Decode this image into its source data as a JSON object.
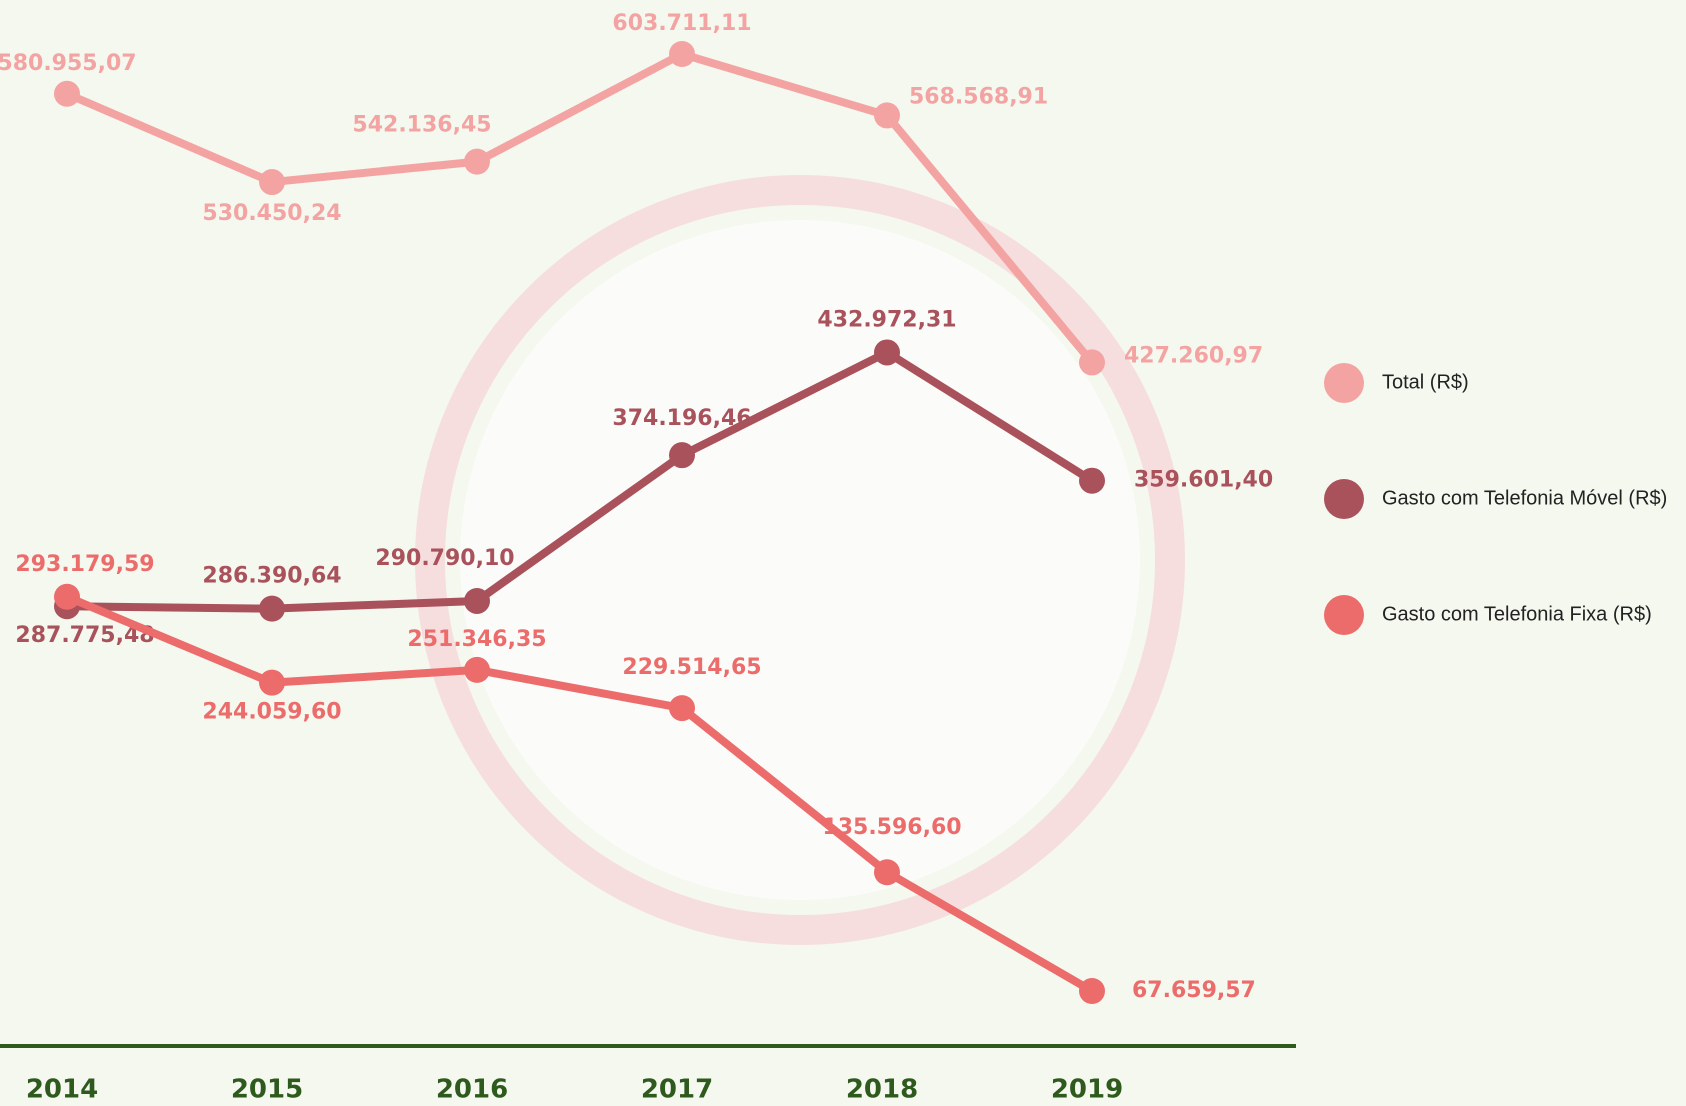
{
  "chart_data": {
    "type": "line",
    "categories": [
      "2014",
      "2015",
      "2016",
      "2017",
      "2018",
      "2019"
    ],
    "series": [
      {
        "name": "Total (R$)",
        "color": "#f4a3a3",
        "values": [
          580955.07,
          530450.24,
          542136.45,
          603711.11,
          568568.91,
          427260.97
        ],
        "value_labels": [
          "580.955,07",
          "530.450,24",
          "542.136,45",
          "603.711,11",
          "568.568,91",
          "427.260,97"
        ]
      },
      {
        "name": "Gasto com Telefonia Móvel (R$)",
        "color": "#a9525b",
        "values": [
          287775.48,
          286390.64,
          290790.1,
          374196.46,
          432972.31,
          359601.4
        ],
        "value_labels": [
          "287.775,48",
          "286.390,64",
          "290.790,10",
          "374.196,46",
          "432.972,31",
          "359.601,40"
        ]
      },
      {
        "name": "Gasto com Telefonia Fixa (R$)",
        "color": "#ec6b6b",
        "values": [
          293179.59,
          244059.6,
          251346.35,
          229514.65,
          135596.6,
          67659.57
        ],
        "value_labels": [
          "293.179,59",
          "244.059,60",
          "251.346,35",
          "229.514,65",
          "135.596,60",
          "67.659,57"
        ]
      }
    ],
    "legend": "right"
  }
}
